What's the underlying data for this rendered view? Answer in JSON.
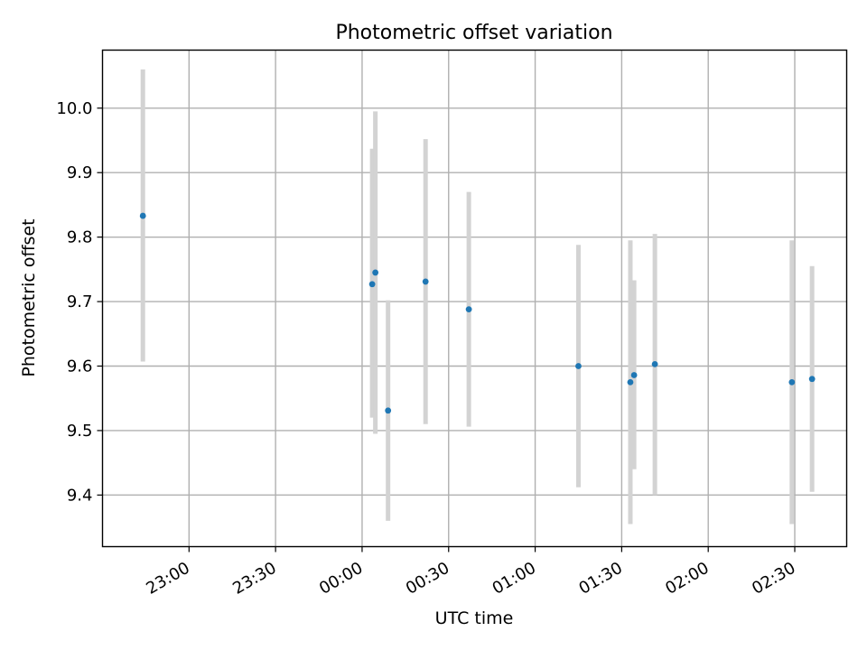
{
  "chart_data": {
    "type": "scatter",
    "title": "Photometric offset variation",
    "xlabel": "UTC time",
    "ylabel": "Photometric offset",
    "x_tick_labels": [
      "23:00",
      "23:30",
      "00:00",
      "00:30",
      "01:00",
      "01:30",
      "02:00",
      "02:30"
    ],
    "x_tick_minutes": [
      -60,
      -30,
      0,
      30,
      60,
      90,
      120,
      150
    ],
    "xlim_minutes": [
      -90,
      168
    ],
    "y_ticks": [
      "9.4",
      "9.5",
      "9.6",
      "9.7",
      "9.8",
      "9.9",
      "10.0"
    ],
    "ylim": [
      9.32,
      10.09
    ],
    "grid": true,
    "error_bar_color": "#d3d3d3",
    "marker_color": "#1f77b4",
    "points": [
      {
        "time": "22:44",
        "t_minutes": -76,
        "y": 9.833,
        "yerr_low": 9.607,
        "yerr_high": 10.06
      },
      {
        "time": "00:03",
        "t_minutes": 3.5,
        "y": 9.727,
        "yerr_low": 9.52,
        "yerr_high": 9.937
      },
      {
        "time": "00:05",
        "t_minutes": 4.6,
        "y": 9.745,
        "yerr_low": 9.495,
        "yerr_high": 9.995
      },
      {
        "time": "00:09",
        "t_minutes": 9,
        "y": 9.531,
        "yerr_low": 9.36,
        "yerr_high": 9.702
      },
      {
        "time": "00:22",
        "t_minutes": 22,
        "y": 9.731,
        "yerr_low": 9.51,
        "yerr_high": 9.952
      },
      {
        "time": "00:37",
        "t_minutes": 37,
        "y": 9.688,
        "yerr_low": 9.506,
        "yerr_high": 9.87
      },
      {
        "time": "01:15",
        "t_minutes": 75,
        "y": 9.6,
        "yerr_low": 9.412,
        "yerr_high": 9.788
      },
      {
        "time": "01:33",
        "t_minutes": 93,
        "y": 9.575,
        "yerr_low": 9.355,
        "yerr_high": 9.795
      },
      {
        "time": "01:34",
        "t_minutes": 94.3,
        "y": 9.586,
        "yerr_low": 9.44,
        "yerr_high": 9.733
      },
      {
        "time": "01:41",
        "t_minutes": 101.5,
        "y": 9.603,
        "yerr_low": 9.4,
        "yerr_high": 9.805
      },
      {
        "time": "02:29",
        "t_minutes": 149,
        "y": 9.575,
        "yerr_low": 9.355,
        "yerr_high": 9.795
      },
      {
        "time": "02:36",
        "t_minutes": 156,
        "y": 9.58,
        "yerr_low": 9.405,
        "yerr_high": 9.755
      }
    ]
  }
}
